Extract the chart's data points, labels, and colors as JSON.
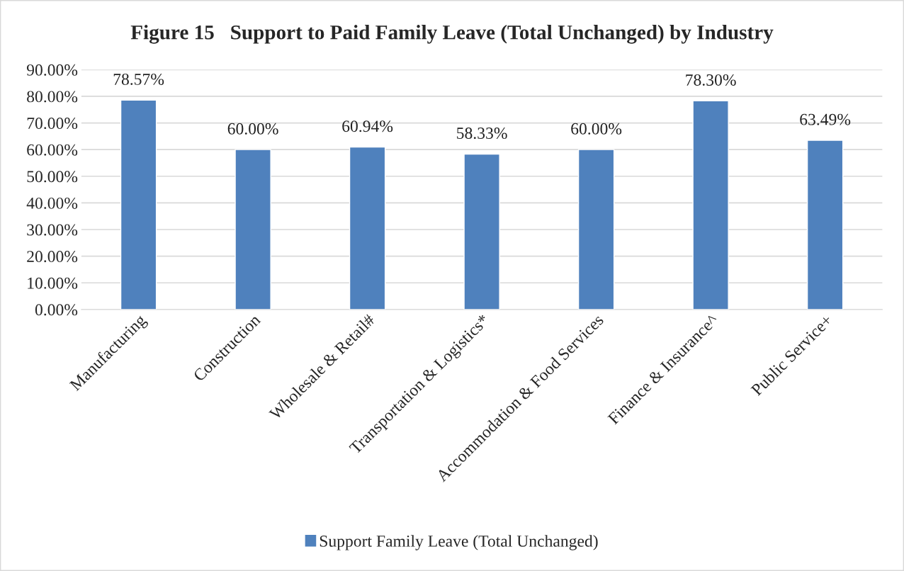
{
  "chart_data": {
    "type": "bar",
    "title": "Figure 15   Support to Paid Family Leave (Total Unchanged) by Industry",
    "categories": [
      "Manufacturing",
      "Construction",
      "Wholesale & Retail#",
      "Transportation & Logistics*",
      "Accommodation & Food Services",
      "Finance & Insurance^",
      "Public Service+"
    ],
    "series": [
      {
        "name": "Support Family Leave (Total Unchanged)",
        "color": "#4f81bd",
        "values": [
          78.57,
          60.0,
          60.94,
          58.33,
          60.0,
          78.3,
          63.49
        ]
      }
    ],
    "value_labels": [
      "78.57%",
      "60.00%",
      "60.94%",
      "58.33%",
      "60.00%",
      "78.30%",
      "63.49%"
    ],
    "ylim": [
      0,
      90
    ],
    "yticks": [
      {
        "value": 0,
        "label": "0.00%"
      },
      {
        "value": 10,
        "label": "10.00%"
      },
      {
        "value": 20,
        "label": "20.00%"
      },
      {
        "value": 30,
        "label": "30.00%"
      },
      {
        "value": 40,
        "label": "40.00%"
      },
      {
        "value": 50,
        "label": "50.00%"
      },
      {
        "value": 60,
        "label": "60.00%"
      },
      {
        "value": 70,
        "label": "70.00%"
      },
      {
        "value": 80,
        "label": "80.00%"
      },
      {
        "value": 90,
        "label": "90.00%"
      }
    ],
    "grid": "y",
    "legend": "bottom"
  }
}
